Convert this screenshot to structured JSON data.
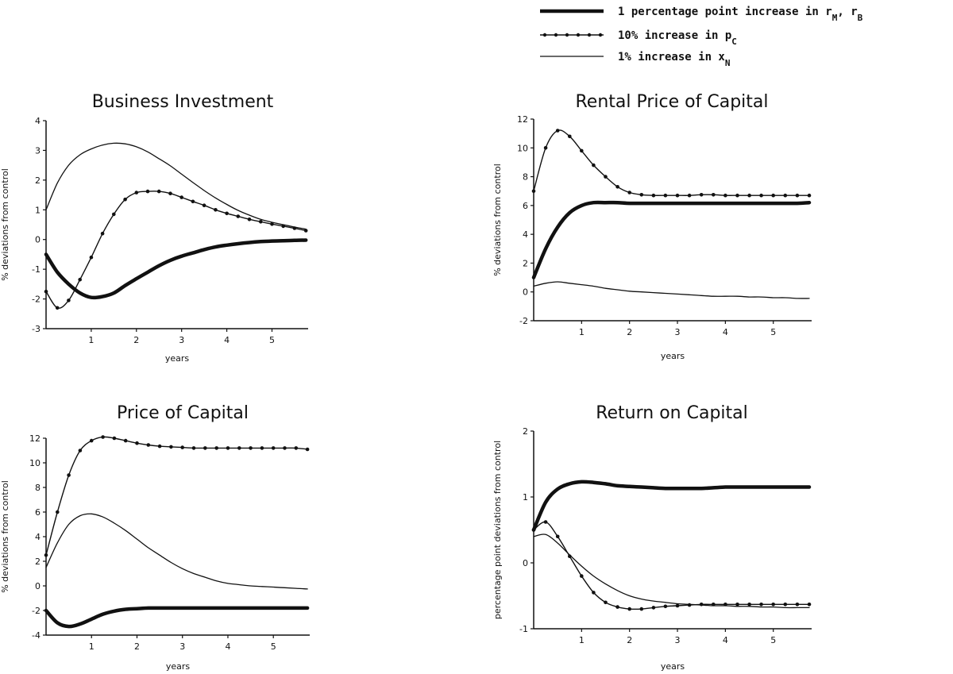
{
  "legend": [
    {
      "style": "thick",
      "label": "1 percentage point increase in r",
      "sub1": "M",
      "sep": ", r",
      "sub2": "B"
    },
    {
      "style": "dotted",
      "label": "10% increase in p",
      "sub1": "C"
    },
    {
      "style": "thin",
      "label": "1% increase in x",
      "sub1": "N"
    }
  ],
  "chart_data": [
    {
      "type": "line",
      "title": "Business Investment",
      "xlabel": "years",
      "ylabel": "% deviations from control",
      "xlim": [
        0,
        5.8
      ],
      "ylim": [
        -3,
        4
      ],
      "xticks": [
        "1",
        "2",
        "3",
        "4",
        "5"
      ],
      "yticks": [
        "-3",
        "-2",
        "-1",
        "0",
        "1",
        "2",
        "3",
        "4"
      ],
      "x": [
        0,
        0.25,
        0.5,
        0.75,
        1,
        1.25,
        1.5,
        1.75,
        2,
        2.25,
        2.5,
        2.75,
        3,
        3.25,
        3.5,
        3.75,
        4,
        4.25,
        4.5,
        4.75,
        5,
        5.25,
        5.5,
        5.75
      ],
      "series": [
        {
          "name": "1 percentage point increase in rM, rB",
          "style": "thick",
          "values": [
            -0.5,
            -1.1,
            -1.5,
            -1.8,
            -1.95,
            -1.92,
            -1.8,
            -1.55,
            -1.32,
            -1.1,
            -0.88,
            -0.7,
            -0.56,
            -0.45,
            -0.34,
            -0.25,
            -0.19,
            -0.14,
            -0.1,
            -0.07,
            -0.05,
            -0.04,
            -0.03,
            -0.02
          ]
        },
        {
          "name": "10% increase in pC",
          "style": "dotted",
          "values": [
            -1.75,
            -2.3,
            -2.05,
            -1.35,
            -0.6,
            0.2,
            0.85,
            1.35,
            1.58,
            1.62,
            1.62,
            1.55,
            1.42,
            1.28,
            1.15,
            1.0,
            0.88,
            0.78,
            0.68,
            0.6,
            0.52,
            0.45,
            0.38,
            0.3
          ]
        },
        {
          "name": "1% increase in xN",
          "style": "thin",
          "values": [
            1.0,
            1.9,
            2.5,
            2.85,
            3.05,
            3.18,
            3.24,
            3.22,
            3.12,
            2.95,
            2.72,
            2.48,
            2.2,
            1.92,
            1.65,
            1.4,
            1.18,
            0.98,
            0.82,
            0.68,
            0.58,
            0.5,
            0.42,
            0.35
          ]
        }
      ]
    },
    {
      "type": "line",
      "title": "Rental Price of Capital",
      "xlabel": "years",
      "ylabel": "% deviations from control",
      "xlim": [
        0,
        5.8
      ],
      "ylim": [
        -2,
        12
      ],
      "xticks": [
        "1",
        "2",
        "3",
        "4",
        "5"
      ],
      "yticks": [
        "-2",
        "0",
        "2",
        "4",
        "6",
        "8",
        "10",
        "12"
      ],
      "x": [
        0,
        0.25,
        0.5,
        0.75,
        1,
        1.25,
        1.5,
        1.75,
        2,
        2.25,
        2.5,
        2.75,
        3,
        3.25,
        3.5,
        3.75,
        4,
        4.25,
        4.5,
        4.75,
        5,
        5.25,
        5.5,
        5.75
      ],
      "series": [
        {
          "name": "1 percentage point increase in rM, rB",
          "style": "thick",
          "values": [
            1.0,
            3.0,
            4.5,
            5.5,
            6.0,
            6.2,
            6.2,
            6.2,
            6.15,
            6.15,
            6.15,
            6.15,
            6.15,
            6.15,
            6.15,
            6.15,
            6.15,
            6.15,
            6.15,
            6.15,
            6.15,
            6.15,
            6.15,
            6.2
          ]
        },
        {
          "name": "10% increase in pC",
          "style": "dotted",
          "values": [
            7.0,
            10.0,
            11.2,
            10.8,
            9.8,
            8.8,
            8.0,
            7.3,
            6.9,
            6.75,
            6.7,
            6.7,
            6.7,
            6.7,
            6.75,
            6.75,
            6.7,
            6.7,
            6.7,
            6.7,
            6.7,
            6.7,
            6.7,
            6.7
          ]
        },
        {
          "name": "1% increase in xN",
          "style": "thin",
          "values": [
            0.4,
            0.6,
            0.7,
            0.6,
            0.5,
            0.4,
            0.25,
            0.15,
            0.05,
            0.0,
            -0.05,
            -0.1,
            -0.15,
            -0.2,
            -0.25,
            -0.3,
            -0.3,
            -0.3,
            -0.35,
            -0.35,
            -0.4,
            -0.4,
            -0.45,
            -0.45
          ]
        }
      ]
    },
    {
      "type": "line",
      "title": "Price of Capital",
      "xlabel": "years",
      "ylabel": "% deviations from control",
      "xlim": [
        0,
        5.8
      ],
      "ylim": [
        -4,
        12
      ],
      "xticks": [
        "1",
        "2",
        "3",
        "4",
        "5"
      ],
      "yticks": [
        "-4",
        "-2",
        "0",
        "2",
        "4",
        "6",
        "8",
        "10",
        "12"
      ],
      "x": [
        0,
        0.25,
        0.5,
        0.75,
        1,
        1.25,
        1.5,
        1.75,
        2,
        2.25,
        2.5,
        2.75,
        3,
        3.25,
        3.5,
        3.75,
        4,
        4.25,
        4.5,
        4.75,
        5,
        5.25,
        5.5,
        5.75
      ],
      "series": [
        {
          "name": "1 percentage point increase in rM, rB",
          "style": "thick",
          "values": [
            -2.0,
            -3.0,
            -3.3,
            -3.1,
            -2.7,
            -2.3,
            -2.05,
            -1.9,
            -1.85,
            -1.8,
            -1.8,
            -1.8,
            -1.8,
            -1.8,
            -1.8,
            -1.8,
            -1.8,
            -1.8,
            -1.8,
            -1.8,
            -1.8,
            -1.8,
            -1.8,
            -1.8
          ]
        },
        {
          "name": "10% increase in pC",
          "style": "dotted",
          "values": [
            2.5,
            6.0,
            9.0,
            11.0,
            11.8,
            12.1,
            12.0,
            11.8,
            11.6,
            11.45,
            11.35,
            11.3,
            11.25,
            11.2,
            11.2,
            11.2,
            11.2,
            11.2,
            11.2,
            11.2,
            11.2,
            11.2,
            11.2,
            11.1
          ]
        },
        {
          "name": "1% increase in xN",
          "style": "thin",
          "values": [
            1.5,
            3.5,
            5.0,
            5.7,
            5.85,
            5.6,
            5.1,
            4.5,
            3.8,
            3.1,
            2.5,
            1.9,
            1.4,
            1.0,
            0.7,
            0.4,
            0.2,
            0.1,
            0.0,
            -0.05,
            -0.1,
            -0.15,
            -0.2,
            -0.25
          ]
        }
      ]
    },
    {
      "type": "line",
      "title": "Return on Capital",
      "xlabel": "years",
      "ylabel": "percentage point deviations from control",
      "xlim": [
        0,
        5.8
      ],
      "ylim": [
        -1,
        2
      ],
      "xticks": [
        "1",
        "2",
        "3",
        "4",
        "5"
      ],
      "yticks": [
        "-1",
        "0",
        "1",
        "2"
      ],
      "x": [
        0,
        0.25,
        0.5,
        0.75,
        1,
        1.25,
        1.5,
        1.75,
        2,
        2.25,
        2.5,
        2.75,
        3,
        3.25,
        3.5,
        3.75,
        4,
        4.25,
        4.5,
        4.75,
        5,
        5.25,
        5.5,
        5.75
      ],
      "series": [
        {
          "name": "1 percentage point increase in rM, rB",
          "style": "thick",
          "values": [
            0.5,
            0.92,
            1.12,
            1.2,
            1.23,
            1.22,
            1.2,
            1.17,
            1.16,
            1.15,
            1.14,
            1.13,
            1.13,
            1.13,
            1.13,
            1.14,
            1.15,
            1.15,
            1.15,
            1.15,
            1.15,
            1.15,
            1.15,
            1.15
          ]
        },
        {
          "name": "10% increase in pC",
          "style": "dotted",
          "values": [
            0.5,
            0.62,
            0.4,
            0.1,
            -0.2,
            -0.45,
            -0.6,
            -0.67,
            -0.7,
            -0.7,
            -0.68,
            -0.66,
            -0.65,
            -0.64,
            -0.63,
            -0.63,
            -0.63,
            -0.63,
            -0.63,
            -0.63,
            -0.63,
            -0.63,
            -0.63,
            -0.63
          ]
        },
        {
          "name": "1% increase in xN",
          "style": "thin",
          "values": [
            0.4,
            0.43,
            0.3,
            0.12,
            -0.05,
            -0.2,
            -0.32,
            -0.42,
            -0.5,
            -0.55,
            -0.58,
            -0.6,
            -0.62,
            -0.63,
            -0.64,
            -0.65,
            -0.65,
            -0.66,
            -0.66,
            -0.67,
            -0.67,
            -0.68,
            -0.68,
            -0.68
          ]
        }
      ]
    }
  ]
}
